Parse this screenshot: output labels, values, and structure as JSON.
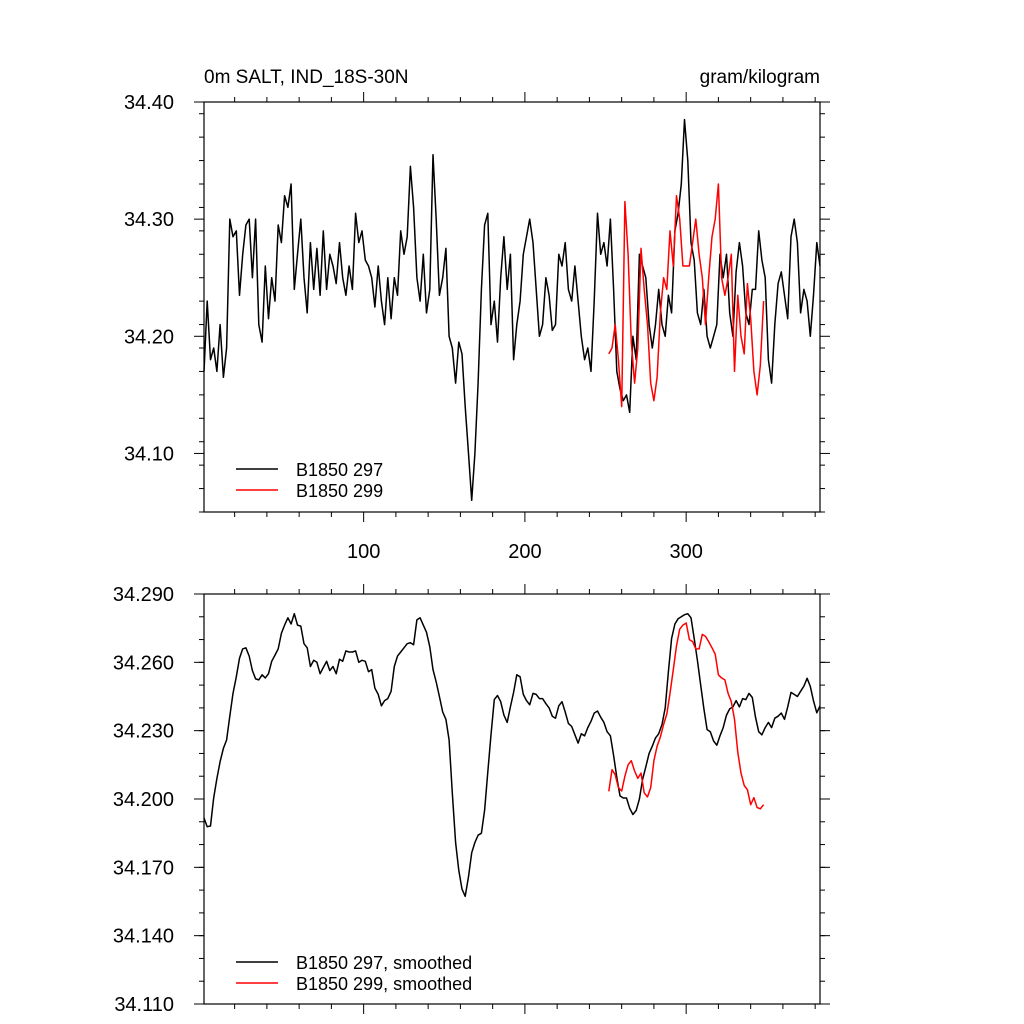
{
  "chart_data": [
    {
      "type": "line",
      "title": "0m SALT, IND_18S-30N",
      "units": "gram/kilogram",
      "xlim": [
        1,
        383
      ],
      "ylim": [
        34.05,
        34.4
      ],
      "xticks": [
        100,
        200,
        300
      ],
      "xtick_labels": [
        "100",
        "200",
        "300"
      ],
      "yticks": [
        34.1,
        34.2,
        34.3,
        34.4
      ],
      "ytick_labels": [
        "34.10",
        "34.20",
        "34.30",
        "34.40"
      ],
      "legend_position": "bottom-left",
      "grid": false,
      "series": [
        {
          "name": "B1850 297",
          "color": "#000000",
          "points": [
            [
              1,
              34.17
            ],
            [
              3,
              34.23
            ],
            [
              5,
              34.18
            ],
            [
              7,
              34.19
            ],
            [
              9,
              34.17
            ],
            [
              11,
              34.21
            ],
            [
              13,
              34.165
            ],
            [
              15,
              34.19
            ],
            [
              17,
              34.3
            ],
            [
              19,
              34.285
            ],
            [
              21,
              34.29
            ],
            [
              23,
              34.235
            ],
            [
              25,
              34.27
            ],
            [
              27,
              34.295
            ],
            [
              29,
              34.3
            ],
            [
              31,
              34.25
            ],
            [
              33,
              34.3
            ],
            [
              35,
              34.21
            ],
            [
              37,
              34.195
            ],
            [
              39,
              34.26
            ],
            [
              41,
              34.215
            ],
            [
              43,
              34.25
            ],
            [
              45,
              34.23
            ],
            [
              47,
              34.295
            ],
            [
              49,
              34.28
            ],
            [
              51,
              34.32
            ],
            [
              53,
              34.31
            ],
            [
              55,
              34.33
            ],
            [
              57,
              34.24
            ],
            [
              59,
              34.27
            ],
            [
              61,
              34.3
            ],
            [
              63,
              34.25
            ],
            [
              65,
              34.22
            ],
            [
              67,
              34.28
            ],
            [
              69,
              34.24
            ],
            [
              71,
              34.275
            ],
            [
              73,
              34.235
            ],
            [
              75,
              34.29
            ],
            [
              77,
              34.24
            ],
            [
              79,
              34.27
            ],
            [
              81,
              34.26
            ],
            [
              83,
              34.245
            ],
            [
              85,
              34.28
            ],
            [
              87,
              34.25
            ],
            [
              89,
              34.235
            ],
            [
              91,
              34.26
            ],
            [
              93,
              34.24
            ],
            [
              95,
              34.305
            ],
            [
              97,
              34.28
            ],
            [
              99,
              34.29
            ],
            [
              101,
              34.265
            ],
            [
              103,
              34.26
            ],
            [
              105,
              34.25
            ],
            [
              107,
              34.225
            ],
            [
              109,
              34.26
            ],
            [
              111,
              34.23
            ],
            [
              113,
              34.21
            ],
            [
              115,
              34.25
            ],
            [
              117,
              34.215
            ],
            [
              119,
              34.25
            ],
            [
              121,
              34.235
            ],
            [
              123,
              34.29
            ],
            [
              125,
              34.27
            ],
            [
              127,
              34.285
            ],
            [
              129,
              34.345
            ],
            [
              131,
              34.31
            ],
            [
              133,
              34.25
            ],
            [
              135,
              34.23
            ],
            [
              137,
              34.27
            ],
            [
              139,
              34.22
            ],
            [
              141,
              34.24
            ],
            [
              143,
              34.355
            ],
            [
              145,
              34.3
            ],
            [
              147,
              34.235
            ],
            [
              149,
              34.25
            ],
            [
              151,
              34.275
            ],
            [
              153,
              34.2
            ],
            [
              155,
              34.19
            ],
            [
              157,
              34.16
            ],
            [
              159,
              34.195
            ],
            [
              161,
              34.185
            ],
            [
              163,
              34.14
            ],
            [
              165,
              34.1
            ],
            [
              167,
              34.06
            ],
            [
              169,
              34.1
            ],
            [
              171,
              34.16
            ],
            [
              173,
              34.24
            ],
            [
              175,
              34.295
            ],
            [
              177,
              34.305
            ],
            [
              179,
              34.21
            ],
            [
              181,
              34.23
            ],
            [
              183,
              34.195
            ],
            [
              185,
              34.25
            ],
            [
              187,
              34.285
            ],
            [
              189,
              34.24
            ],
            [
              191,
              34.27
            ],
            [
              193,
              34.18
            ],
            [
              195,
              34.21
            ],
            [
              197,
              34.23
            ],
            [
              199,
              34.27
            ],
            [
              201,
              34.285
            ],
            [
              203,
              34.3
            ],
            [
              205,
              34.28
            ],
            [
              207,
              34.24
            ],
            [
              209,
              34.2
            ],
            [
              211,
              34.21
            ],
            [
              213,
              34.25
            ],
            [
              215,
              34.235
            ],
            [
              217,
              34.205
            ],
            [
              219,
              34.21
            ],
            [
              221,
              34.27
            ],
            [
              223,
              34.26
            ],
            [
              225,
              34.28
            ],
            [
              227,
              34.24
            ],
            [
              229,
              34.23
            ],
            [
              231,
              34.26
            ],
            [
              233,
              34.23
            ],
            [
              235,
              34.2
            ],
            [
              237,
              34.18
            ],
            [
              239,
              34.19
            ],
            [
              241,
              34.17
            ],
            [
              243,
              34.23
            ],
            [
              245,
              34.305
            ],
            [
              247,
              34.27
            ],
            [
              249,
              34.28
            ],
            [
              251,
              34.26
            ],
            [
              253,
              34.3
            ],
            [
              255,
              34.24
            ],
            [
              257,
              34.17
            ],
            [
              259,
              34.155
            ],
            [
              261,
              34.145
            ],
            [
              263,
              34.15
            ],
            [
              265,
              34.135
            ],
            [
              267,
              34.2
            ],
            [
              269,
              34.18
            ],
            [
              271,
              34.27
            ],
            [
              273,
              34.26
            ],
            [
              275,
              34.25
            ],
            [
              277,
              34.21
            ],
            [
              279,
              34.19
            ],
            [
              281,
              34.21
            ],
            [
              283,
              34.24
            ],
            [
              285,
              34.21
            ],
            [
              287,
              34.2
            ],
            [
              289,
              34.235
            ],
            [
              291,
              34.22
            ],
            [
              293,
              34.29
            ],
            [
              295,
              34.305
            ],
            [
              297,
              34.33
            ],
            [
              299,
              34.385
            ],
            [
              301,
              34.35
            ],
            [
              303,
              34.28
            ],
            [
              305,
              34.265
            ],
            [
              307,
              34.22
            ],
            [
              309,
              34.21
            ],
            [
              311,
              34.24
            ],
            [
              313,
              34.2
            ],
            [
              315,
              34.19
            ],
            [
              317,
              34.2
            ],
            [
              319,
              34.21
            ],
            [
              321,
              34.27
            ],
            [
              323,
              34.25
            ],
            [
              325,
              34.27
            ],
            [
              327,
              34.22
            ],
            [
              329,
              34.2
            ],
            [
              331,
              34.255
            ],
            [
              333,
              34.28
            ],
            [
              335,
              34.26
            ],
            [
              337,
              34.22
            ],
            [
              339,
              34.21
            ],
            [
              341,
              34.24
            ],
            [
              343,
              34.24
            ],
            [
              345,
              34.29
            ],
            [
              347,
              34.265
            ],
            [
              349,
              34.25
            ],
            [
              351,
              34.18
            ],
            [
              353,
              34.16
            ],
            [
              355,
              34.21
            ],
            [
              357,
              34.245
            ],
            [
              359,
              34.255
            ],
            [
              361,
              34.235
            ],
            [
              363,
              34.215
            ],
            [
              365,
              34.285
            ],
            [
              367,
              34.3
            ],
            [
              369,
              34.28
            ],
            [
              371,
              34.22
            ],
            [
              373,
              34.24
            ],
            [
              375,
              34.23
            ],
            [
              377,
              34.2
            ],
            [
              379,
              34.235
            ],
            [
              381,
              34.28
            ],
            [
              383,
              34.26
            ]
          ],
          "note_x_values_are_years_scaled": false
        },
        {
          "name": "B1850 299",
          "color": "#ff0000",
          "points": [
            [
              252,
              34.185
            ],
            [
              254,
              34.19
            ],
            [
              256,
              34.21
            ],
            [
              258,
              34.18
            ],
            [
              260,
              34.14
            ],
            [
              262,
              34.315
            ],
            [
              264,
              34.27
            ],
            [
              266,
              34.195
            ],
            [
              268,
              34.16
            ],
            [
              270,
              34.19
            ],
            [
              272,
              34.275
            ],
            [
              274,
              34.24
            ],
            [
              276,
              34.21
            ],
            [
              278,
              34.16
            ],
            [
              280,
              34.145
            ],
            [
              282,
              34.165
            ],
            [
              284,
              34.22
            ],
            [
              286,
              34.25
            ],
            [
              288,
              34.24
            ],
            [
              290,
              34.29
            ],
            [
              292,
              34.26
            ],
            [
              294,
              34.32
            ],
            [
              296,
              34.3
            ],
            [
              298,
              34.26
            ],
            [
              300,
              34.26
            ],
            [
              302,
              34.26
            ],
            [
              304,
              34.28
            ],
            [
              306,
              34.3
            ],
            [
              308,
              34.27
            ],
            [
              310,
              34.25
            ],
            [
              312,
              34.21
            ],
            [
              314,
              34.25
            ],
            [
              316,
              34.285
            ],
            [
              318,
              34.3
            ],
            [
              320,
              34.33
            ],
            [
              322,
              34.25
            ],
            [
              324,
              34.235
            ],
            [
              326,
              34.25
            ],
            [
              328,
              34.27
            ],
            [
              330,
              34.17
            ],
            [
              332,
              34.235
            ],
            [
              334,
              34.2
            ],
            [
              336,
              34.185
            ],
            [
              338,
              34.245
            ],
            [
              340,
              34.215
            ],
            [
              342,
              34.17
            ],
            [
              344,
              34.15
            ],
            [
              346,
              34.175
            ],
            [
              348,
              34.23
            ]
          ],
          "draw_order": "over"
        }
      ]
    },
    {
      "type": "line",
      "xlim": [
        1,
        383
      ],
      "ylim": [
        34.11,
        34.29
      ],
      "xticks": [
        100,
        200,
        300
      ],
      "yticks": [
        34.11,
        34.14,
        34.17,
        34.2,
        34.23,
        34.26,
        34.29
      ],
      "ytick_labels": [
        "34.110",
        "34.140",
        "34.170",
        "34.200",
        "34.230",
        "34.260",
        "34.290"
      ],
      "legend_position": "bottom-left",
      "grid": false,
      "series": [
        {
          "name": "B1850 297, smoothed",
          "color": "#000000"
        },
        {
          "name": "B1850 299, smoothed",
          "color": "#ff0000"
        }
      ]
    }
  ]
}
